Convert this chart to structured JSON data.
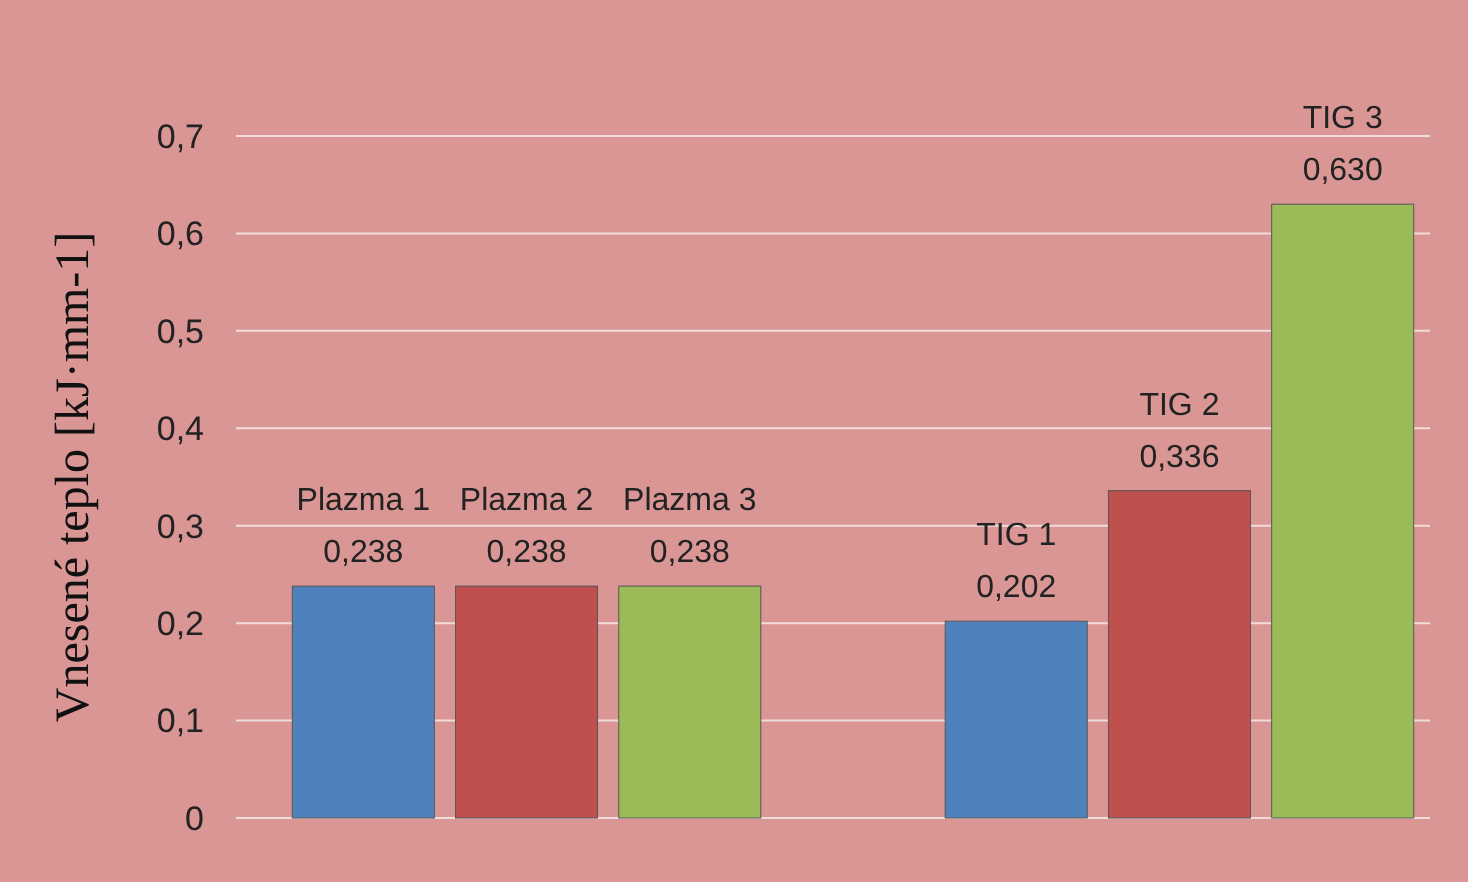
{
  "chart_data": {
    "type": "bar",
    "ylabel": "Vnesené teplo [kJ·mm-1]",
    "categories": [
      "Plazma 1",
      "Plazma 2",
      "Plazma 3",
      null,
      "TIG 1",
      "TIG 2",
      "TIG 3"
    ],
    "values": [
      0.238,
      0.238,
      0.238,
      null,
      0.202,
      0.336,
      0.63
    ],
    "value_labels": [
      "0,238",
      "0,238",
      "0,238",
      null,
      "0,202",
      "0,336",
      "0,630"
    ],
    "colors": [
      "#4f81bd",
      "#c0504d",
      "#9bbb59",
      null,
      "#4f81bd",
      "#c0504d",
      "#9bbb59"
    ],
    "ylim": [
      0,
      0.7
    ],
    "yticks": [
      0,
      {
        "value": 0.1,
        "label": "0,1"
      },
      {
        "value": 0.2,
        "label": "0,2"
      },
      {
        "value": 0.3,
        "label": "0,3"
      },
      {
        "value": 0.4,
        "label": "0,4"
      },
      {
        "value": 0.5,
        "label": "0,5"
      },
      {
        "value": 0.6,
        "label": "0,6"
      },
      {
        "value": 0.7,
        "label": "0,7"
      }
    ],
    "grid": true
  }
}
